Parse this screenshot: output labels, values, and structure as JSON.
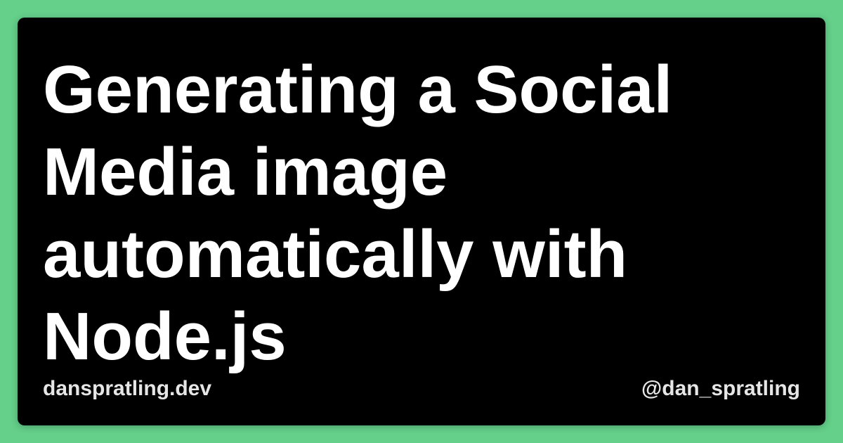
{
  "background_color": "#64d08a",
  "card_color": "#000000",
  "text_color": "#ffffff",
  "footer_text_color": "#e6e6e6",
  "title": "Generating a Social\nMedia image\nautomatically with\nNode.js",
  "footer": {
    "site": "danspratling.dev",
    "handle": "@dan_spratling"
  }
}
